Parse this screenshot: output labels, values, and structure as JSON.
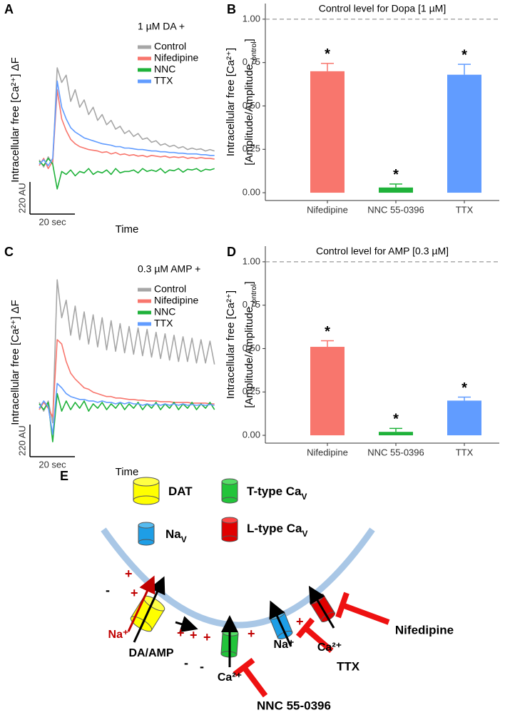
{
  "chart_data": [
    {
      "type": "line",
      "label": "A",
      "legend_title": "1 µM DA +",
      "y_label": "Intracellular free [Ca²⁺] ΔF",
      "x_label": "Time",
      "scale_bar": {
        "x": {
          "value": 20,
          "label": "20 sec"
        },
        "y": {
          "value": 220,
          "label": "220 AU"
        }
      },
      "x": [
        0,
        2,
        4,
        6,
        8,
        10,
        12,
        14,
        16,
        18,
        20,
        22,
        24,
        26,
        28,
        30,
        32,
        34,
        36,
        38,
        40,
        42,
        44,
        46,
        48,
        50,
        52,
        54,
        56,
        58,
        60,
        62,
        64,
        66,
        68,
        70,
        72,
        74,
        76,
        78
      ],
      "series": [
        {
          "name": "Control",
          "color": "#a6a6a6",
          "values": [
            20,
            -30,
            40,
            -10,
            650,
            550,
            600,
            420,
            500,
            380,
            430,
            330,
            380,
            290,
            330,
            260,
            290,
            230,
            250,
            200,
            220,
            180,
            200,
            160,
            170,
            140,
            150,
            120,
            130,
            110,
            120,
            100,
            110,
            90,
            100,
            90,
            95,
            80,
            90,
            80
          ]
        },
        {
          "name": "Nifedipine",
          "color": "#f8766d",
          "values": [
            -20,
            30,
            -40,
            10,
            500,
            300,
            220,
            160,
            130,
            110,
            100,
            90,
            85,
            80,
            70,
            75,
            60,
            70,
            55,
            60,
            50,
            55,
            45,
            50,
            40,
            50,
            45,
            40,
            45,
            35,
            40,
            35,
            40,
            30,
            35,
            30,
            35,
            30,
            30,
            25
          ]
        },
        {
          "name": "NNC",
          "color": "#1fb23a",
          "values": [
            10,
            -20,
            30,
            -10,
            -180,
            -60,
            -80,
            -50,
            -90,
            -60,
            -70,
            -40,
            -80,
            -60,
            -70,
            -50,
            -80,
            -40,
            -70,
            -60,
            -60,
            -50,
            -70,
            -40,
            -60,
            -50,
            -60,
            -40,
            -70,
            -50,
            -55,
            -40,
            -65,
            -45,
            -50,
            -40,
            -60,
            -45,
            -50,
            -40
          ]
        },
        {
          "name": "TTX",
          "color": "#619cff",
          "values": [
            -10,
            20,
            -20,
            30,
            560,
            380,
            300,
            240,
            210,
            190,
            170,
            160,
            150,
            140,
            130,
            125,
            120,
            110,
            110,
            100,
            100,
            95,
            90,
            90,
            85,
            80,
            80,
            75,
            75,
            70,
            70,
            65,
            65,
            60,
            60,
            60,
            55,
            55,
            50,
            50
          ]
        }
      ]
    },
    {
      "type": "bar",
      "label": "B",
      "title": "Control level for Dopa [1 µM]",
      "reference_line": 1,
      "y_label": [
        [
          {
            "text": "Intracellular free [Ca²⁺]"
          }
        ],
        [
          {
            "text": "[Amplitude/Amplitude"
          },
          {
            "sub": "control"
          },
          {
            "text": "]"
          }
        ]
      ],
      "categories": [
        "Nifedipine",
        "NNC 55-0396",
        "TTX"
      ],
      "values": [
        0.7,
        0.03,
        0.68
      ],
      "errors": [
        0.045,
        0.02,
        0.06
      ],
      "colors": [
        "#f8766d",
        "#1fb23a",
        "#619cff"
      ],
      "annotations": [
        "*",
        "*",
        "*"
      ],
      "ylim": [
        -0.045,
        1.09
      ],
      "yticks": [
        {
          "value": 0,
          "label": "0.00"
        },
        {
          "value": 0.25,
          "label": "0.25"
        },
        {
          "value": 0.5,
          "label": "0.50"
        },
        {
          "value": 0.75,
          "label": "0.75"
        },
        {
          "value": 1,
          "label": "1.00"
        }
      ]
    },
    {
      "type": "line",
      "label": "C",
      "legend_title": "0.3 µM AMP +",
      "y_label": "Intracellular free [Ca²⁺] ΔF",
      "x_label": "Time",
      "scale_bar": {
        "x": {
          "value": 20,
          "label": "20 sec"
        },
        "y": {
          "value": 220,
          "label": "220 AU"
        }
      },
      "x": [
        0,
        2,
        4,
        6,
        8,
        10,
        12,
        14,
        16,
        18,
        20,
        22,
        24,
        26,
        28,
        30,
        32,
        34,
        36,
        38,
        40,
        42,
        44,
        46,
        48,
        50,
        52,
        54,
        56,
        58,
        60,
        62,
        64,
        66,
        68,
        70,
        72,
        74,
        76,
        78
      ],
      "series": [
        {
          "name": "Control",
          "color": "#a6a6a6",
          "values": [
            20,
            -40,
            30,
            -120,
            860,
            600,
            720,
            480,
            680,
            450,
            640,
            420,
            620,
            400,
            600,
            380,
            580,
            370,
            560,
            360,
            540,
            350,
            530,
            340,
            520,
            330,
            500,
            320,
            490,
            310,
            480,
            300,
            470,
            300,
            460,
            290,
            450,
            290,
            440,
            280
          ]
        },
        {
          "name": "Nifedipine",
          "color": "#f8766d",
          "values": [
            -30,
            20,
            -20,
            -80,
            450,
            420,
            300,
            220,
            180,
            150,
            120,
            110,
            90,
            80,
            70,
            60,
            60,
            50,
            50,
            45,
            40,
            40,
            35,
            35,
            30,
            30,
            30,
            25,
            25,
            25,
            20,
            20,
            20,
            20,
            15,
            15,
            15,
            15,
            10,
            10
          ]
        },
        {
          "name": "NNC",
          "color": "#1fb23a",
          "values": [
            10,
            -30,
            20,
            -250,
            80,
            -40,
            30,
            -30,
            20,
            -20,
            30,
            -40,
            10,
            -20,
            20,
            -30,
            10,
            -20,
            20,
            -30,
            10,
            -20,
            20,
            -30,
            10,
            -20,
            20,
            -30,
            10,
            -20,
            20,
            -30,
            10,
            -20,
            20,
            -30,
            10,
            -20,
            20,
            -30
          ]
        },
        {
          "name": "TTX",
          "color": "#619cff",
          "values": [
            -20,
            30,
            -10,
            -200,
            150,
            120,
            80,
            60,
            50,
            40,
            40,
            30,
            30,
            20,
            30,
            20,
            20,
            10,
            20,
            10,
            20,
            10,
            10,
            0,
            10,
            0,
            10,
            0,
            10,
            0,
            10,
            0,
            10,
            0,
            5,
            0,
            5,
            0,
            5,
            0
          ]
        }
      ]
    },
    {
      "type": "bar",
      "label": "D",
      "title": "Control level for AMP [0.3 µM]",
      "reference_line": 1,
      "y_label": [
        [
          {
            "text": "Intracellular free [Ca²⁺]"
          }
        ],
        [
          {
            "text": "[Amplitude/Amplitude"
          },
          {
            "sub": "control"
          },
          {
            "text": "]"
          }
        ]
      ],
      "categories": [
        "Nifedipine",
        "NNC 55-0396",
        "TTX"
      ],
      "values": [
        0.51,
        0.02,
        0.2
      ],
      "errors": [
        0.035,
        0.02,
        0.02
      ],
      "colors": [
        "#f8766d",
        "#1fb23a",
        "#619cff"
      ],
      "annotations": [
        "*",
        "*",
        "*"
      ],
      "ylim": [
        -0.045,
        1.09
      ],
      "yticks": [
        {
          "value": 0,
          "label": "0.00"
        },
        {
          "value": 0.25,
          "label": "0.25"
        },
        {
          "value": 0.5,
          "label": "0.50"
        },
        {
          "value": 0.75,
          "label": "0.75"
        },
        {
          "value": 1,
          "label": "1.00"
        }
      ]
    }
  ],
  "diagram": {
    "label": "E",
    "legend": [
      [
        {
          "text": "DAT"
        }
      ],
      [
        {
          "text": "T-type Ca"
        },
        {
          "sub": "V"
        }
      ],
      [
        {
          "text": "Na"
        },
        {
          "sub": "V"
        }
      ],
      [
        {
          "text": "L-type Ca"
        },
        {
          "sub": "V"
        }
      ]
    ],
    "ions": [
      "Na⁺",
      "Ca²⁺",
      "Na⁺",
      "Ca²⁺"
    ],
    "substrate": "DA/AMP",
    "blockers": [
      "NNC 55-0396",
      "TTX",
      "Nifedipine"
    ],
    "charges": {
      "plus": "+",
      "minus": "-"
    }
  }
}
